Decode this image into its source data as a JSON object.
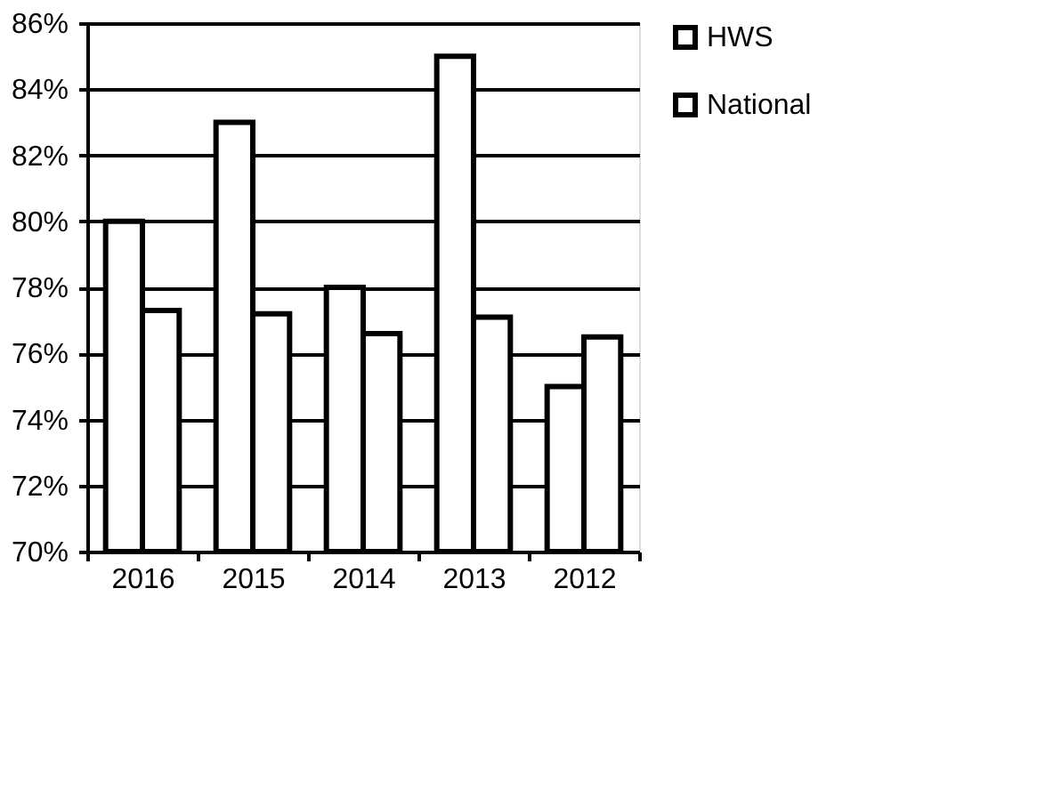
{
  "chart_data": {
    "type": "bar",
    "categories": [
      "2016",
      "2015",
      "2014",
      "2013",
      "2012"
    ],
    "series": [
      {
        "name": "HWS",
        "color": "#ffffff",
        "values": [
          80,
          83,
          78,
          85,
          75
        ]
      },
      {
        "name": "National",
        "color": "#ffffff",
        "values": [
          77.3,
          77.2,
          76.6,
          77.1,
          76.5
        ]
      }
    ],
    "ylim": [
      70,
      86
    ],
    "yticks": [
      {
        "value": 70,
        "label": "70%"
      },
      {
        "value": 72,
        "label": "72%"
      },
      {
        "value": 74,
        "label": "74%"
      },
      {
        "value": 76,
        "label": "76%"
      },
      {
        "value": 78,
        "label": "78%"
      },
      {
        "value": 80,
        "label": "80%"
      },
      {
        "value": 82,
        "label": "82%"
      },
      {
        "value": 84,
        "label": "84%"
      },
      {
        "value": 86,
        "label": "86%"
      }
    ],
    "grid": "y",
    "legend": "right"
  }
}
